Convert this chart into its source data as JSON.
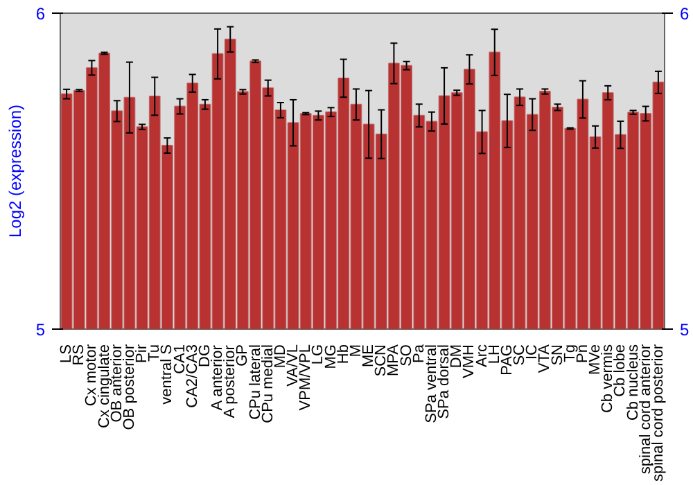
{
  "chart_data": {
    "type": "bar",
    "ylabel": "Log2 (expression)",
    "color": "#b83232",
    "categories": [
      "LS",
      "RS",
      "Cx motor",
      "Cx cingulate",
      "OB anterior",
      "OB posterior",
      "Pir",
      "Tu",
      "ventral S",
      "CA1",
      "CA2/CA3",
      "DG",
      "A anterior",
      "A posterior",
      "GP",
      "CPu lateral",
      "CPu medial",
      "MD",
      "VA/VL",
      "VPM/VPL",
      "LG",
      "MG",
      "Hb",
      "M",
      "ME",
      "SCN",
      "MPA",
      "SO",
      "Pa",
      "SPa ventral",
      "SPa dorsal",
      "DM",
      "VMH",
      "Arc",
      "LH",
      "PAG",
      "SC",
      "IC",
      "VTA",
      "SN",
      "Tg",
      "Pn",
      "MVe",
      "Cb vermis",
      "Cb lobe",
      "Cb nucleus",
      "spinal cord anterior",
      "spinal cord posterior"
    ],
    "values": [
      5.744,
      5.755,
      5.827,
      5.873,
      5.69,
      5.733,
      5.64,
      5.737,
      5.581,
      5.705,
      5.778,
      5.711,
      5.871,
      5.917,
      5.751,
      5.848,
      5.763,
      5.693,
      5.653,
      5.682,
      5.676,
      5.687,
      5.794,
      5.711,
      5.648,
      5.617,
      5.841,
      5.834,
      5.676,
      5.657,
      5.738,
      5.748,
      5.822,
      5.624,
      5.876,
      5.659,
      5.734,
      5.679,
      5.752,
      5.702,
      5.635,
      5.727,
      5.608,
      5.748,
      5.615,
      5.686,
      5.682,
      5.781
    ],
    "errors": [
      0.015,
      0.003,
      0.023,
      0.003,
      0.033,
      0.112,
      0.008,
      0.06,
      0.024,
      0.024,
      0.028,
      0.015,
      0.079,
      0.04,
      0.007,
      0.004,
      0.025,
      0.024,
      0.073,
      0.003,
      0.014,
      0.014,
      0.06,
      0.049,
      0.107,
      0.077,
      0.064,
      0.013,
      0.036,
      0.03,
      0.089,
      0.008,
      0.046,
      0.068,
      0.073,
      0.084,
      0.026,
      0.05,
      0.008,
      0.01,
      0.002,
      0.059,
      0.035,
      0.022,
      0.043,
      0.006,
      0.023,
      0.035
    ],
    "ylim": [
      5,
      6
    ],
    "yticks": [
      5,
      6
    ],
    "y2lim": [
      5,
      6
    ],
    "y2ticks": [
      5,
      6
    ],
    "grid": false
  }
}
